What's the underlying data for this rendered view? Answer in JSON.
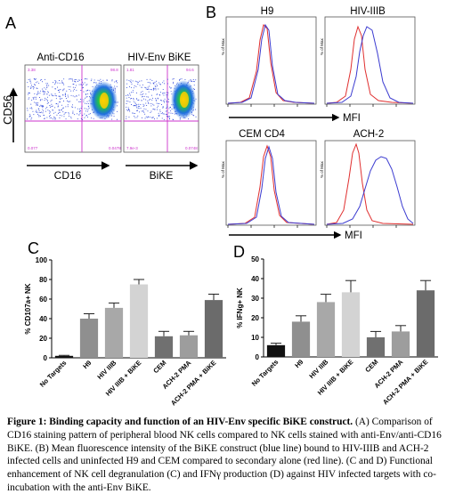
{
  "panel_labels": {
    "a": "A",
    "b": "B",
    "c": "C",
    "d": "D"
  },
  "panel_a": {
    "plot1_title": "Anti-CD16",
    "plot2_title": "HIV-Env BiKE",
    "y_axis_label": "CD56",
    "x_axis_label_1": "CD16",
    "x_axis_label_2": "BiKE"
  },
  "panel_b": {
    "histograms": [
      {
        "title": "H9",
        "ylabel": "% of Max"
      },
      {
        "title": "HIV-IIIB",
        "ylabel": "% of Max"
      },
      {
        "title": "CEM CD4",
        "ylabel": "% of Max"
      },
      {
        "title": "ACH-2",
        "ylabel": "% of Max"
      }
    ],
    "mfi_label": "MFI",
    "colors": {
      "bike": "#3b3bd0",
      "secondary": "#e03030"
    }
  },
  "chart_data": [
    {
      "type": "bar",
      "ylabel": "% CD107a+ NK",
      "ylim": [
        0,
        100
      ],
      "yticks": [
        "0",
        "20",
        "40",
        "60",
        "80",
        "100"
      ],
      "categories": [
        "No Targets",
        "H9",
        "HIV IIIB",
        "HIV IIIB + BiKE",
        "CEM",
        "ACH-2 PMA",
        "ACH-2 PMA + BiKE"
      ],
      "values": [
        2,
        40,
        51,
        75,
        22,
        23,
        59
      ],
      "errors": [
        0.5,
        5,
        5,
        5,
        5,
        4,
        6
      ],
      "colors": [
        "#111111",
        "#8f8f8f",
        "#a8a8a8",
        "#d3d3d3",
        "#707070",
        "#9d9d9d",
        "#6b6b6b"
      ]
    },
    {
      "type": "bar",
      "ylabel": "% IFNg+ NK",
      "ylim": [
        0,
        50
      ],
      "yticks": [
        "0",
        "10",
        "20",
        "30",
        "40",
        "50"
      ],
      "categories": [
        "No Targets",
        "H9",
        "HIV IIIB",
        "HIV IIIB + BiKE",
        "CEM",
        "ACH-2 PMA",
        "ACH-2 PMA + BiKE"
      ],
      "values": [
        6,
        18,
        28,
        33,
        10,
        13,
        34
      ],
      "errors": [
        1,
        3,
        4,
        6,
        3,
        3,
        5
      ],
      "colors": [
        "#111111",
        "#8f8f8f",
        "#a8a8a8",
        "#d3d3d3",
        "#707070",
        "#9d9d9d",
        "#6b6b6b"
      ]
    }
  ],
  "caption": {
    "title": "Figure 1: Binding capacity and function of an HIV-Env specific BiKE construct.",
    "body": " (A) Comparison of CD16 staining pattern of peripheral blood NK cells compared to NK cells stained with anti-Env/anti-CD16 BiKE. (B) Mean fluorescence intensity of the BiKE construct (blue line) bound to HIV-IIIB and ACH-2 infected cells and uninfected H9 and CEM compared to secondary alone (red line). (C and D) Functional enhancement of NK cell degranulation (C) and IFNγ production (D) against HIV infected targets with co-incubation with the anti-Env BiKE."
  }
}
